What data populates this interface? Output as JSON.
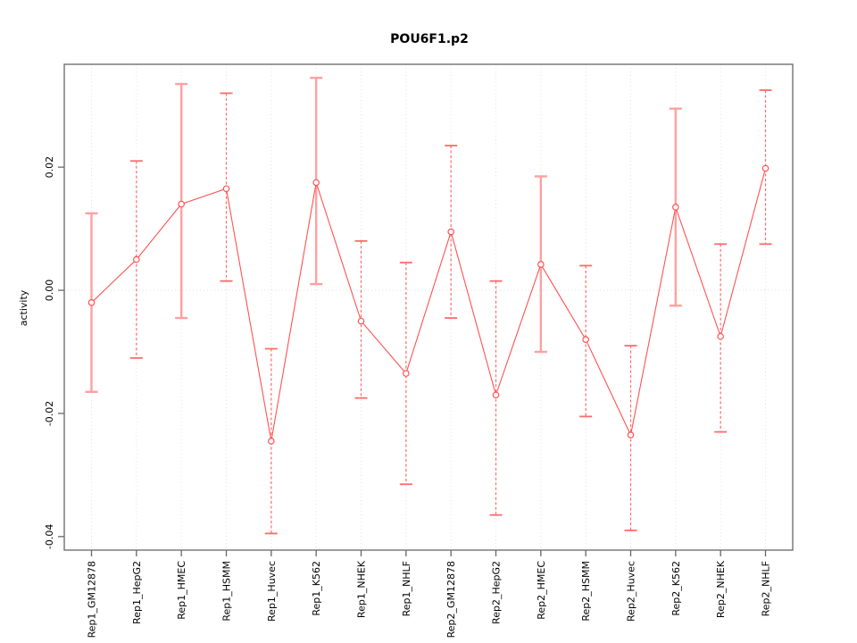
{
  "title": "POU6F1.p2",
  "chart_data": {
    "type": "line",
    "title": "POU6F1.p2",
    "xlabel": "",
    "ylabel": "activity",
    "legend": "none",
    "grid": "dotted vertical gridline at each category; dotted horizontal line at y=0",
    "point_marker": "open-circle",
    "error_bars": true,
    "categories": [
      "Rep1_GM12878",
      "Rep1_HepG2",
      "Rep1_HMEC",
      "Rep1_HSMM",
      "Rep1_Huvec",
      "Rep1_K562",
      "Rep1_NHEK",
      "Rep1_NHLF",
      "Rep2_GM12878",
      "Rep2_HepG2",
      "Rep2_HMEC",
      "Rep2_HSMM",
      "Rep2_Huvec",
      "Rep2_K562",
      "Rep2_NHEK",
      "Rep2_NHLF"
    ],
    "series": [
      {
        "name": "activity",
        "values": [
          -0.002,
          0.005,
          0.014,
          0.0165,
          -0.0245,
          0.0175,
          -0.005,
          -0.0135,
          0.0095,
          -0.017,
          0.0042,
          -0.008,
          -0.0235,
          0.0135,
          -0.0075,
          0.0198
        ],
        "upper": [
          0.0125,
          0.021,
          0.0335,
          0.032,
          -0.0095,
          0.0345,
          0.008,
          0.0045,
          0.0235,
          0.0015,
          0.0185,
          0.004,
          -0.009,
          0.0295,
          0.0075,
          0.0325
        ],
        "lower": [
          -0.0165,
          -0.011,
          -0.0045,
          0.0015,
          -0.0395,
          0.001,
          -0.0175,
          -0.0315,
          -0.0045,
          -0.0365,
          -0.01,
          -0.0205,
          -0.039,
          -0.0025,
          -0.023,
          0.0075
        ],
        "bar_style": [
          "solid",
          "dashed",
          "solid",
          "dashed",
          "dashed",
          "solid",
          "dashed",
          "dashed",
          "dashed",
          "dashed",
          "solid",
          "dashed",
          "dashed",
          "solid",
          "dashed",
          "dashed"
        ]
      }
    ],
    "yticks": [
      {
        "label": "0.02",
        "value": 0.02
      },
      {
        "label": "0.00",
        "value": 0.0
      },
      {
        "label": "-0.02",
        "value": -0.02
      },
      {
        "label": "-0.04",
        "value": -0.04
      }
    ],
    "ylim": [
      -0.0422,
      0.0367
    ],
    "colors": {
      "line": "#ff5252",
      "marker": "#ff5252",
      "error_bar_solid": "#ffa0a0",
      "error_bar_dashed": "#ff6b6b",
      "zero_line": "#dcdcdc",
      "gridline": "#e4e4e4",
      "frame": "#666666",
      "tick": "#666666",
      "text": "#000000",
      "background": "#ffffff"
    }
  }
}
